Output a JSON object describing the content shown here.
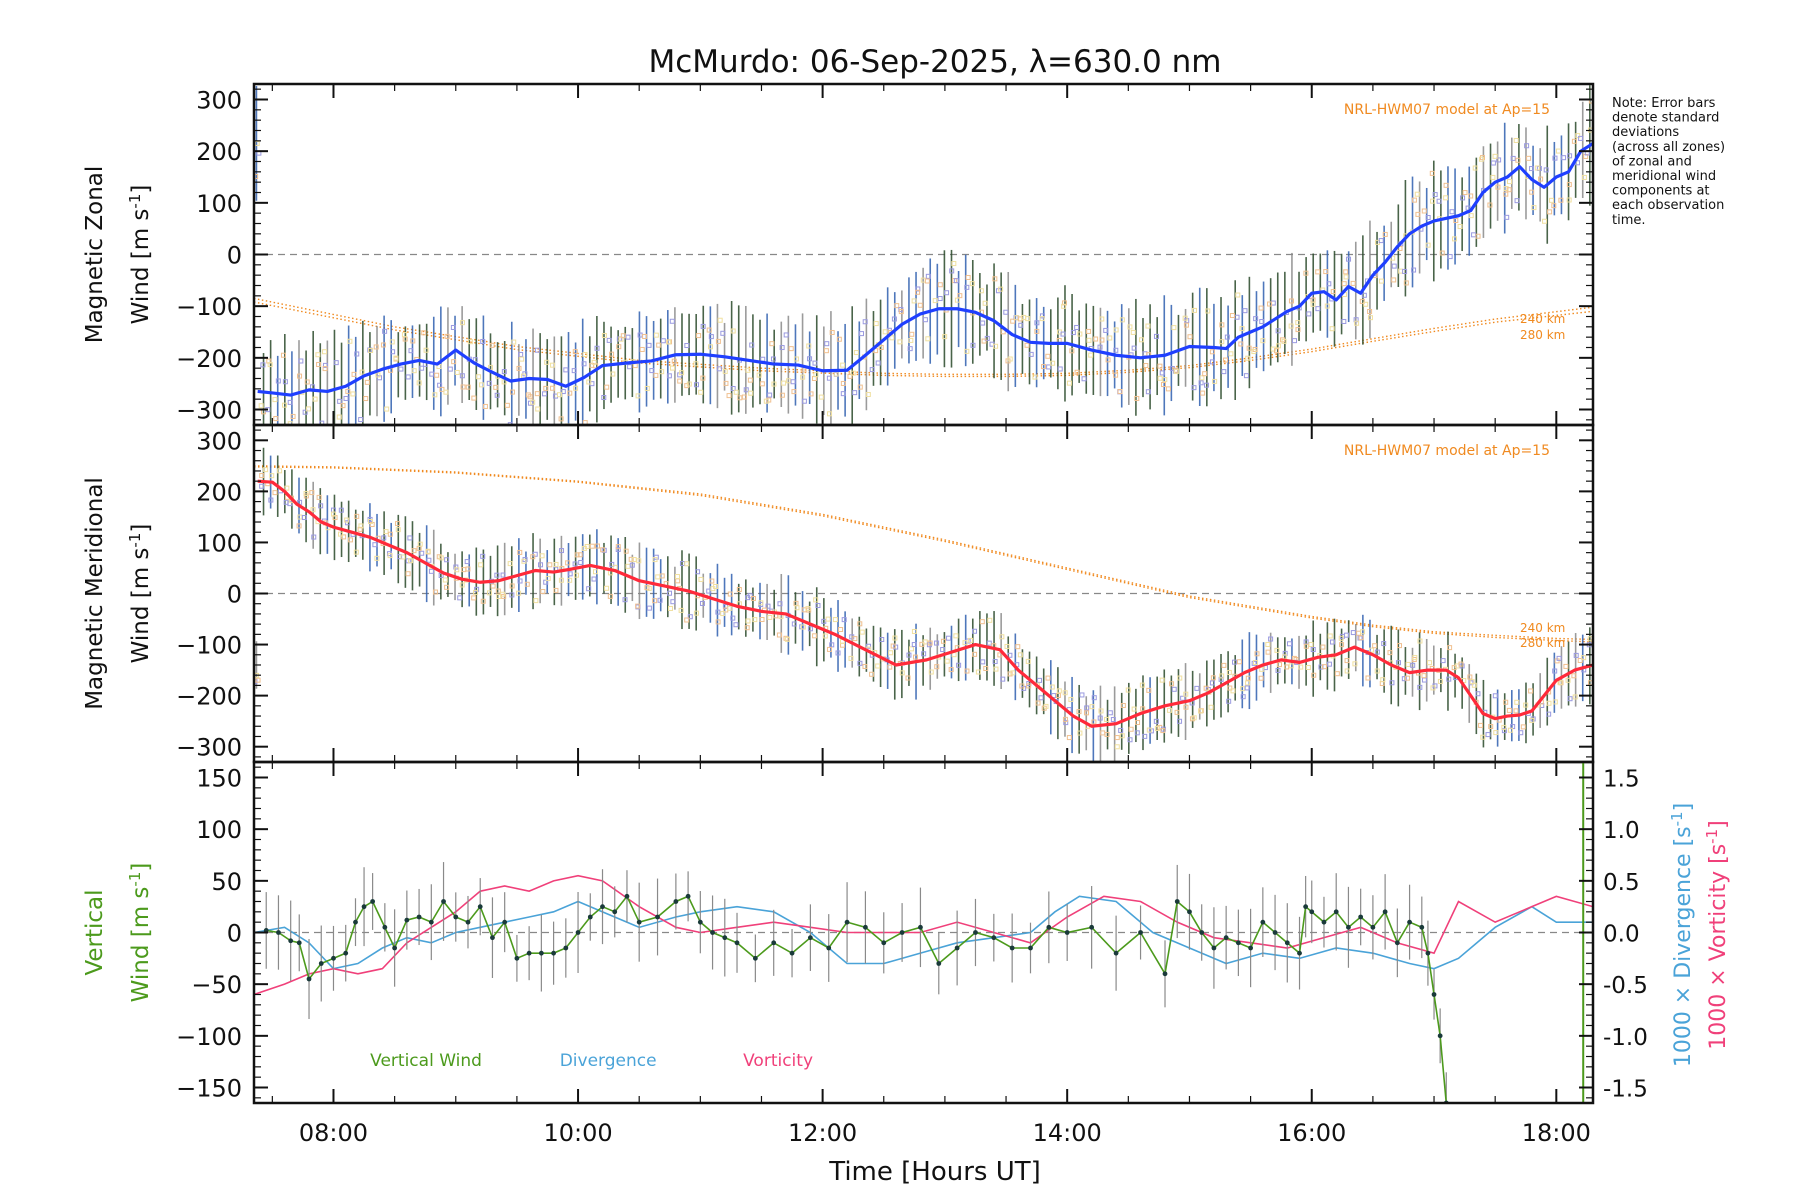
{
  "figure": {
    "title": "McMurdo: 06-Sep-2025, λ=630.0 nm",
    "xlabel": "Time [Hours UT]",
    "note": [
      "Note: Error bars",
      "denote standard",
      "deviations",
      "(across all zones)",
      "of zonal and",
      "meridional wind",
      "components at",
      "each observation",
      "time."
    ]
  },
  "colors": {
    "zonal": "#1f3fff",
    "meridional": "#ff2a3a",
    "vertical": "#4c9a1c",
    "divergence": "#4aa3d8",
    "vorticity": "#f0407a",
    "model": "#f08a20",
    "errorbar_dark": "#2a4a2a",
    "errorbar_blue": "#3060b0",
    "errorbar_grey": "#8a8a8a",
    "zone_purple": "#9a9ae0",
    "zone_orange": "#f0c090",
    "zone_yellow": "#f0e0a0"
  },
  "chart_data": [
    {
      "id": "zonal",
      "type": "line",
      "ylabel_line1": "Magnetic Zonal",
      "ylabel_line2": "Wind [m s",
      "ylabel_sup": "-1",
      "ylabel_close": "]",
      "xlim": [
        7.35,
        18.3
      ],
      "ylim": [
        -330,
        330
      ],
      "yticks": [
        -300,
        -200,
        -100,
        0,
        100,
        200,
        300
      ],
      "xticks": [
        8,
        10,
        12,
        14,
        16,
        18
      ],
      "xticklabels": [
        "08:00",
        "10:00",
        "12:00",
        "14:00",
        "16:00",
        "18:00"
      ],
      "zero_line": true,
      "model_label": "NRL-HWM07 model at Ap=15",
      "model_alt_labels": [
        "240 km",
        "280 km"
      ],
      "model_curves": [
        {
          "name": "240 km",
          "x": [
            7.35,
            8.5,
            9.5,
            10.5,
            11.5,
            12.5,
            13.0,
            13.5,
            14.0,
            14.5,
            15.0,
            15.5,
            16.0,
            16.5,
            17.0,
            17.5,
            18.3
          ],
          "y": [
            -85,
            -140,
            -178,
            -205,
            -220,
            -230,
            -232,
            -232,
            -230,
            -224,
            -215,
            -200,
            -183,
            -163,
            -143,
            -125,
            -102
          ]
        },
        {
          "name": "280 km",
          "x": [
            7.35,
            8.5,
            9.5,
            10.5,
            11.5,
            12.5,
            13.0,
            13.5,
            14.0,
            14.5,
            15.0,
            15.5,
            16.0,
            16.5,
            17.0,
            17.5,
            18.3
          ],
          "y": [
            -92,
            -146,
            -184,
            -210,
            -225,
            -234,
            -236,
            -236,
            -234,
            -228,
            -219,
            -205,
            -188,
            -168,
            -149,
            -131,
            -110
          ]
        }
      ],
      "series": [
        {
          "name": "Zonal Wind",
          "x": [
            7.38,
            7.5,
            7.65,
            7.8,
            7.95,
            8.1,
            8.25,
            8.4,
            8.55,
            8.7,
            8.85,
            9.0,
            9.15,
            9.3,
            9.45,
            9.6,
            9.75,
            9.9,
            10.05,
            10.2,
            10.4,
            10.6,
            10.8,
            11.0,
            11.2,
            11.4,
            11.6,
            11.8,
            12.0,
            12.2,
            12.35,
            12.5,
            12.65,
            12.8,
            12.95,
            13.1,
            13.25,
            13.4,
            13.55,
            13.7,
            13.85,
            14.0,
            14.2,
            14.4,
            14.6,
            14.8,
            15.0,
            15.2,
            15.3,
            15.4,
            15.5,
            15.6,
            15.7,
            15.8,
            15.9,
            16.0,
            16.1,
            16.2,
            16.3,
            16.4,
            16.5,
            16.6,
            16.7,
            16.8,
            16.9,
            17.0,
            17.1,
            17.2,
            17.3,
            17.4,
            17.5,
            17.6,
            17.7,
            17.8,
            17.9,
            18.0,
            18.1,
            18.2,
            18.3
          ],
          "y": [
            -265,
            -268,
            -272,
            -262,
            -265,
            -255,
            -235,
            -222,
            -212,
            -205,
            -212,
            -185,
            -210,
            -228,
            -245,
            -240,
            -242,
            -255,
            -238,
            -215,
            -210,
            -206,
            -194,
            -193,
            -198,
            -205,
            -212,
            -214,
            -225,
            -224,
            -195,
            -165,
            -135,
            -115,
            -105,
            -105,
            -112,
            -128,
            -155,
            -170,
            -172,
            -172,
            -185,
            -195,
            -200,
            -195,
            -178,
            -180,
            -182,
            -160,
            -150,
            -140,
            -125,
            -110,
            -100,
            -75,
            -72,
            -88,
            -62,
            -75,
            -40,
            -15,
            15,
            40,
            55,
            65,
            70,
            75,
            85,
            120,
            140,
            150,
            170,
            145,
            130,
            150,
            160,
            200,
            215
          ]
        }
      ],
      "errorbar_halfwidth": 90
    },
    {
      "id": "meridional",
      "type": "line",
      "ylabel_line1": "Magnetic Meridional",
      "ylabel_line2": "Wind [m s",
      "ylabel_sup": "-1",
      "ylabel_close": "]",
      "xlim": [
        7.35,
        18.3
      ],
      "ylim": [
        -330,
        330
      ],
      "yticks": [
        -300,
        -200,
        -100,
        0,
        100,
        200,
        300
      ],
      "xticks": [
        8,
        10,
        12,
        14,
        16,
        18
      ],
      "zero_line": true,
      "model_label": "NRL-HWM07 model at Ap=15",
      "model_alt_labels": [
        "240 km",
        "280 km"
      ],
      "model_curves": [
        {
          "name": "240 km",
          "x": [
            7.35,
            8.0,
            9.0,
            10.0,
            11.0,
            12.0,
            13.0,
            14.0,
            15.0,
            16.0,
            16.5,
            17.0,
            17.5,
            18.0,
            18.3
          ],
          "y": [
            250,
            248,
            238,
            220,
            195,
            155,
            105,
            50,
            -5,
            -45,
            -62,
            -75,
            -82,
            -88,
            -90
          ]
        },
        {
          "name": "280 km",
          "x": [
            7.35,
            8.0,
            9.0,
            10.0,
            11.0,
            12.0,
            13.0,
            14.0,
            15.0,
            16.0,
            16.5,
            17.0,
            17.5,
            18.0,
            18.3
          ],
          "y": [
            248,
            246,
            236,
            218,
            192,
            152,
            102,
            47,
            -8,
            -48,
            -65,
            -78,
            -86,
            -92,
            -95
          ]
        }
      ],
      "series": [
        {
          "name": "Meridional Wind",
          "x": [
            7.38,
            7.5,
            7.6,
            7.7,
            7.8,
            7.9,
            8.0,
            8.15,
            8.3,
            8.45,
            8.6,
            8.75,
            8.9,
            9.05,
            9.2,
            9.35,
            9.5,
            9.65,
            9.8,
            9.95,
            10.1,
            10.3,
            10.5,
            10.7,
            10.9,
            11.1,
            11.3,
            11.5,
            11.7,
            11.9,
            12.1,
            12.35,
            12.6,
            12.85,
            13.05,
            13.25,
            13.45,
            13.6,
            13.75,
            13.9,
            14.05,
            14.2,
            14.4,
            14.6,
            14.8,
            15.0,
            15.15,
            15.3,
            15.45,
            15.6,
            15.75,
            15.9,
            16.05,
            16.2,
            16.35,
            16.5,
            16.65,
            16.8,
            16.95,
            17.1,
            17.2,
            17.3,
            17.4,
            17.5,
            17.6,
            17.7,
            17.8,
            17.9,
            18.0,
            18.15,
            18.3
          ],
          "y": [
            220,
            218,
            200,
            175,
            160,
            140,
            130,
            120,
            110,
            95,
            80,
            60,
            40,
            28,
            22,
            25,
            35,
            45,
            42,
            48,
            55,
            45,
            25,
            15,
            5,
            -10,
            -25,
            -35,
            -40,
            -60,
            -80,
            -110,
            -140,
            -130,
            -115,
            -100,
            -110,
            -150,
            -180,
            -210,
            -240,
            -260,
            -255,
            -235,
            -220,
            -210,
            -195,
            -175,
            -155,
            -140,
            -130,
            -135,
            -125,
            -120,
            -105,
            -120,
            -140,
            -155,
            -150,
            -150,
            -165,
            -200,
            -235,
            -245,
            -240,
            -238,
            -230,
            -200,
            -170,
            -150,
            -140
          ]
        }
      ],
      "errorbar_halfwidth": 60
    },
    {
      "id": "vertical",
      "type": "line",
      "ylabel_line1": "Vertical",
      "ylabel_line2": "Wind [m s",
      "ylabel_sup": "-1",
      "ylabel_close": "]",
      "y2label_a": "1000 × Divergence [s",
      "y2label_b": "1000 × Vorticity [s",
      "y2label_sup": "-1",
      "y2label_close": "]",
      "xlim": [
        7.35,
        18.3
      ],
      "ylim": [
        -165,
        165
      ],
      "yticks": [
        -150,
        -100,
        -50,
        0,
        50,
        100,
        150
      ],
      "y2lim": [
        -1.65,
        1.65
      ],
      "y2ticks": [
        -1.5,
        -1.0,
        -0.5,
        0.0,
        0.5,
        1.0,
        1.5
      ],
      "y2ticklabels": [
        "-1.5",
        "-1.0",
        "-0.5",
        "0.0",
        "0.5",
        "1.0",
        "1.5"
      ],
      "xticks": [
        8,
        10,
        12,
        14,
        16,
        18
      ],
      "xticklabels": [
        "08:00",
        "10:00",
        "12:00",
        "14:00",
        "16:00",
        "18:00"
      ],
      "zero_line": true,
      "legend": [
        "Vertical Wind",
        "Divergence",
        "Vorticity"
      ],
      "series": [
        {
          "name": "Vertical Wind",
          "axis": "left",
          "x": [
            7.45,
            7.55,
            7.65,
            7.72,
            7.8,
            7.9,
            8.0,
            8.1,
            8.18,
            8.25,
            8.32,
            8.42,
            8.5,
            8.6,
            8.7,
            8.8,
            8.9,
            9.0,
            9.1,
            9.2,
            9.3,
            9.4,
            9.5,
            9.6,
            9.7,
            9.8,
            9.9,
            10.0,
            10.1,
            10.2,
            10.3,
            10.4,
            10.5,
            10.65,
            10.8,
            10.9,
            11.0,
            11.1,
            11.2,
            11.3,
            11.45,
            11.6,
            11.75,
            11.9,
            12.05,
            12.2,
            12.35,
            12.5,
            12.65,
            12.8,
            12.95,
            13.1,
            13.25,
            13.4,
            13.55,
            13.7,
            13.85,
            14.0,
            14.2,
            14.4,
            14.6,
            14.8,
            14.9,
            15.0,
            15.1,
            15.2,
            15.3,
            15.4,
            15.5,
            15.6,
            15.7,
            15.8,
            15.9,
            15.95,
            16.0,
            16.1,
            16.2,
            16.3,
            16.4,
            16.5,
            16.6,
            16.7,
            16.8,
            16.9,
            16.95,
            17.0,
            17.05,
            17.1
          ],
          "y": [
            2,
            0,
            -8,
            -10,
            -45,
            -30,
            -25,
            -20,
            10,
            25,
            30,
            5,
            -15,
            12,
            15,
            10,
            30,
            15,
            10,
            25,
            -5,
            10,
            -25,
            -20,
            -20,
            -20,
            -15,
            0,
            15,
            25,
            20,
            35,
            10,
            15,
            30,
            35,
            10,
            0,
            -5,
            -10,
            -25,
            -10,
            -20,
            -5,
            -15,
            10,
            5,
            -10,
            0,
            5,
            -30,
            -15,
            0,
            -5,
            -15,
            -15,
            5,
            0,
            5,
            -20,
            0,
            -40,
            30,
            20,
            0,
            -15,
            -5,
            -10,
            -15,
            10,
            0,
            -10,
            -20,
            25,
            20,
            10,
            20,
            5,
            15,
            5,
            20,
            -10,
            10,
            5,
            -20,
            -60,
            -100,
            -165
          ]
        },
        {
          "name": "Divergence",
          "axis": "right",
          "x": [
            7.35,
            7.6,
            7.8,
            8.0,
            8.2,
            8.4,
            8.6,
            8.8,
            9.0,
            9.2,
            9.4,
            9.6,
            9.8,
            10.0,
            10.2,
            10.5,
            10.8,
            11.0,
            11.3,
            11.6,
            11.9,
            12.2,
            12.5,
            12.8,
            13.1,
            13.4,
            13.7,
            13.9,
            14.1,
            14.4,
            14.7,
            15.0,
            15.3,
            15.6,
            15.9,
            16.2,
            16.5,
            16.8,
            17.0,
            17.2,
            17.5,
            17.8,
            18.0,
            18.3
          ],
          "y": [
            0.0,
            0.05,
            -0.1,
            -0.35,
            -0.3,
            -0.15,
            -0.05,
            -0.1,
            0.0,
            0.05,
            0.1,
            0.15,
            0.2,
            0.3,
            0.2,
            0.05,
            0.15,
            0.2,
            0.25,
            0.2,
            0.0,
            -0.3,
            -0.3,
            -0.2,
            -0.1,
            -0.05,
            0.0,
            0.2,
            0.35,
            0.3,
            0.0,
            -0.15,
            -0.3,
            -0.2,
            -0.25,
            -0.15,
            -0.2,
            -0.3,
            -0.35,
            -0.25,
            0.05,
            0.25,
            0.1,
            0.1
          ]
        },
        {
          "name": "Vorticity",
          "axis": "right",
          "x": [
            7.35,
            7.6,
            7.8,
            8.0,
            8.2,
            8.4,
            8.6,
            8.8,
            9.0,
            9.2,
            9.4,
            9.6,
            9.8,
            10.0,
            10.2,
            10.5,
            10.8,
            11.0,
            11.3,
            11.6,
            11.9,
            12.2,
            12.5,
            12.8,
            13.1,
            13.4,
            13.7,
            14.0,
            14.3,
            14.6,
            14.9,
            15.2,
            15.5,
            15.8,
            16.1,
            16.4,
            16.7,
            17.0,
            17.2,
            17.5,
            17.8,
            18.0,
            18.3
          ],
          "y": [
            -0.6,
            -0.5,
            -0.4,
            -0.35,
            -0.4,
            -0.35,
            -0.1,
            0.05,
            0.2,
            0.4,
            0.45,
            0.4,
            0.5,
            0.55,
            0.5,
            0.25,
            0.05,
            0.0,
            0.05,
            0.1,
            0.05,
            0.0,
            0.0,
            0.0,
            0.1,
            0.0,
            -0.1,
            0.15,
            0.35,
            0.3,
            0.1,
            -0.05,
            -0.1,
            -0.15,
            -0.05,
            0.05,
            -0.1,
            -0.2,
            0.3,
            0.1,
            0.25,
            0.35,
            0.25
          ]
        }
      ]
    }
  ]
}
